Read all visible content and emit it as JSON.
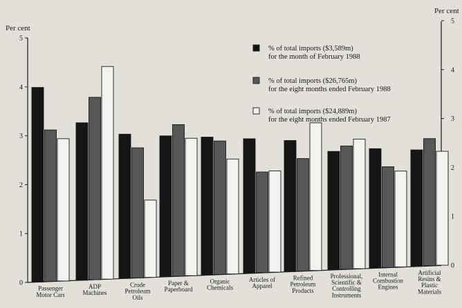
{
  "chart_data": {
    "type": "bar",
    "left_axis_label": "Per cent",
    "right_axis_label": "Per cent",
    "ylim": [
      0,
      5
    ],
    "y_ticks": [
      "0",
      "1",
      "2",
      "3",
      "4",
      "5"
    ],
    "grid": false,
    "legend_position": "top-right",
    "categories": [
      [
        "Passenger",
        "Motor Cars"
      ],
      [
        "ADP",
        "Machines"
      ],
      [
        "Crude",
        "Petroleum",
        "Oils"
      ],
      [
        "Paper &",
        "Paperboard"
      ],
      [
        "Organic",
        "Chemicals"
      ],
      [
        "Articles of",
        "Apparel"
      ],
      [
        "Refined",
        "Petroleum",
        "Products"
      ],
      [
        "Professional,",
        "Scientific &",
        "Controlling",
        "Instruments"
      ],
      [
        "Internal",
        "Combustion",
        "Engines"
      ],
      [
        "Artificial",
        "Resins &",
        "Plastic",
        "Materials"
      ]
    ],
    "series": [
      {
        "name_lines": [
          "% of total imports ($3,589m)",
          "for the month of February 1988"
        ],
        "color": "#151515",
        "values": [
          3.98,
          3.22,
          2.95,
          2.88,
          2.82,
          2.75,
          2.68,
          2.42,
          2.44,
          2.38
        ]
      },
      {
        "name_lines": [
          "% of total imports ($26,765m)",
          "for the eight months ended February 1988"
        ],
        "color": "#575757",
        "values": [
          3.1,
          3.73,
          2.66,
          3.1,
          2.73,
          2.06,
          2.3,
          2.52,
          2.06,
          2.6
        ]
      },
      {
        "name_lines": [
          "% of total imports ($24,889m)",
          "for the eight months ended February 1987"
        ],
        "color": "#f4f2ee",
        "values": [
          2.91,
          4.35,
          1.58,
          2.81,
          2.35,
          2.07,
          3.02,
          2.65,
          1.96,
          2.33
        ]
      }
    ]
  }
}
